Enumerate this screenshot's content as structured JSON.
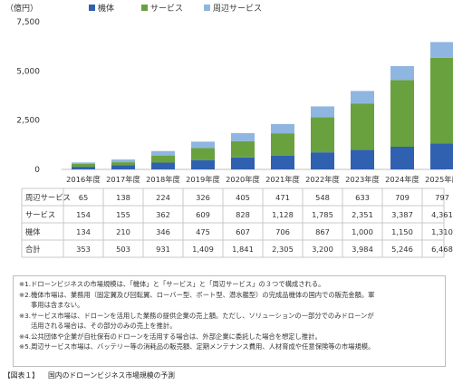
{
  "chart_data": {
    "type": "bar",
    "stacked": true,
    "ylabel": "（億円）",
    "ylim": [
      0,
      7500
    ],
    "yticks": [
      0,
      2500,
      5000,
      7500
    ],
    "yticklabels": [
      "0",
      "2,500",
      "5,000",
      "7,500"
    ],
    "grid": false,
    "legend_position": "top",
    "categories": [
      "2016年度",
      "2017年度",
      "2018年度",
      "2019年度",
      "2020年度",
      "2021年度",
      "2022年度",
      "2023年度",
      "2024年度",
      "2025年度"
    ],
    "series": [
      {
        "name": "機体",
        "color": "#3060b0",
        "values": [
          134,
          210,
          346,
          475,
          607,
          706,
          867,
          1000,
          1150,
          1310
        ]
      },
      {
        "name": "サービス",
        "color": "#69a13f",
        "values": [
          154,
          155,
          362,
          609,
          828,
          1128,
          1785,
          2351,
          3387,
          4361
        ]
      },
      {
        "name": "周辺サービス",
        "color": "#8fb6e0",
        "values": [
          65,
          138,
          224,
          326,
          405,
          471,
          548,
          633,
          709,
          797
        ]
      }
    ],
    "table": {
      "rows": [
        {
          "label": "周辺サービス",
          "values": [
            "65",
            "138",
            "224",
            "326",
            "405",
            "471",
            "548",
            "633",
            "709",
            "797"
          ]
        },
        {
          "label": "サービス",
          "values": [
            "154",
            "155",
            "362",
            "609",
            "828",
            "1,128",
            "1,785",
            "2,351",
            "3,387",
            "4,361"
          ]
        },
        {
          "label": "機体",
          "values": [
            "134",
            "210",
            "346",
            "475",
            "607",
            "706",
            "867",
            "1,000",
            "1,150",
            "1,310"
          ]
        },
        {
          "label": "合計",
          "values": [
            "353",
            "503",
            "931",
            "1,409",
            "1,841",
            "2,305",
            "3,200",
            "3,984",
            "5,246",
            "6,468"
          ]
        }
      ]
    }
  },
  "notes": {
    "lines": [
      {
        "text": "※1.ドローンビジネスの市場規模は、「機体」と「サービス」と「周辺サービス」の３つで構成される。",
        "cont": false
      },
      {
        "text": "※2.機体市場は、業務用（固定翼及び回転翼、ローバー型、ボート型、潜水艦型）の完成品機体の国内での販売金額。軍",
        "cont": false
      },
      {
        "text": "事用は含まない。",
        "cont": true
      },
      {
        "text": "※3.サービス市場は、ドローンを活用した業務の提供企業の売上額。ただし、ソリューションの一部分でのみドローンが",
        "cont": false
      },
      {
        "text": "活用される場合は、その部分のみの売上を推計。",
        "cont": true
      },
      {
        "text": "※4.公共団体や企業が自社保有のドローンを活用する場合は、外部企業に委託した場合を想定し推計。",
        "cont": false
      },
      {
        "text": "※5.周辺サービス市場は、バッテリー等の消耗品の販売額、定期メンテナンス費用、人材育成や任意保険等の市場規模。",
        "cont": false
      }
    ]
  },
  "caption": {
    "label": "【図表１】",
    "text": "国内のドローンビジネス市場規模の予測"
  }
}
